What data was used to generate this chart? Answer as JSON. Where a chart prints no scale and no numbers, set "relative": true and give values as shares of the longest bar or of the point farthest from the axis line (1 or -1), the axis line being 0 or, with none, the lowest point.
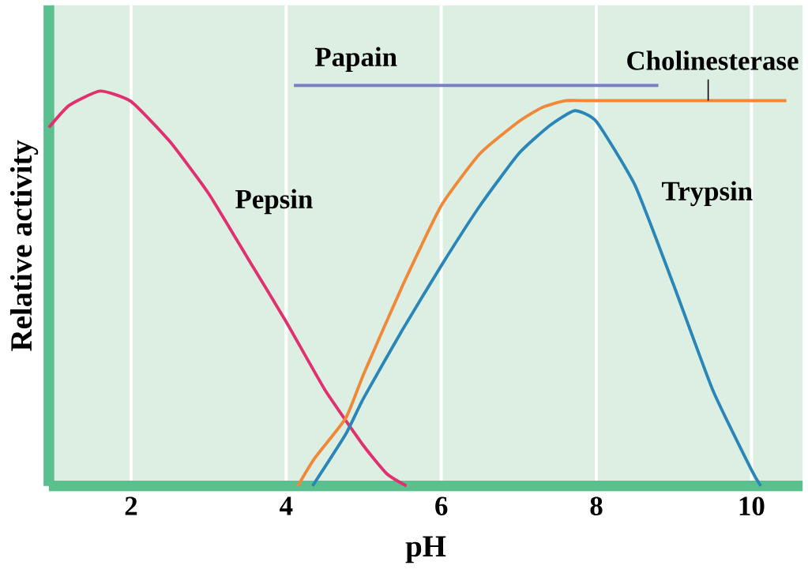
{
  "chart_data": {
    "type": "line",
    "relative": true,
    "xlabel": "pH",
    "ylabel": "Relative activity",
    "xlim": [
      0.94,
      10.66
    ],
    "xticks": [
      2,
      4,
      6,
      8,
      10
    ],
    "grid": "x",
    "marker": "none",
    "line_style": "solid",
    "series": [
      {
        "name": "Pepsin",
        "color": "#e0306f",
        "x": [
          0.94,
          1.2,
          1.6,
          2,
          2.5,
          3,
          3.5,
          4,
          4.5,
          5,
          5.3,
          5.55
        ],
        "values": [
          0.895,
          0.95,
          0.986,
          0.96,
          0.86,
          0.73,
          0.57,
          0.41,
          0.24,
          0.1,
          0.03,
          0
        ]
      },
      {
        "name": "Papain",
        "color": "#7b7fc4",
        "x": [
          4.1,
          8.8
        ],
        "values": [
          1,
          1
        ]
      },
      {
        "name": "Cholinesterase",
        "color": "#f0883a",
        "x": [
          4.15,
          4.37,
          4.77,
          5,
          5.5,
          6,
          6.5,
          7,
          7.3,
          7.6,
          8,
          10.45
        ],
        "values": [
          0,
          0.07,
          0.17,
          0.28,
          0.5,
          0.7,
          0.83,
          0.91,
          0.945,
          0.962,
          0.962,
          0.962
        ]
      },
      {
        "name": "Trypsin",
        "color": "#2a86b8",
        "x": [
          4.34,
          4.77,
          5,
          5.5,
          6,
          6.5,
          7,
          7.4,
          7.72,
          8,
          8.5,
          9,
          9.5,
          10,
          10.12
        ],
        "values": [
          0,
          0.13,
          0.22,
          0.39,
          0.55,
          0.7,
          0.83,
          0.9,
          0.937,
          0.91,
          0.75,
          0.5,
          0.24,
          0.04,
          0
        ]
      }
    ]
  }
}
